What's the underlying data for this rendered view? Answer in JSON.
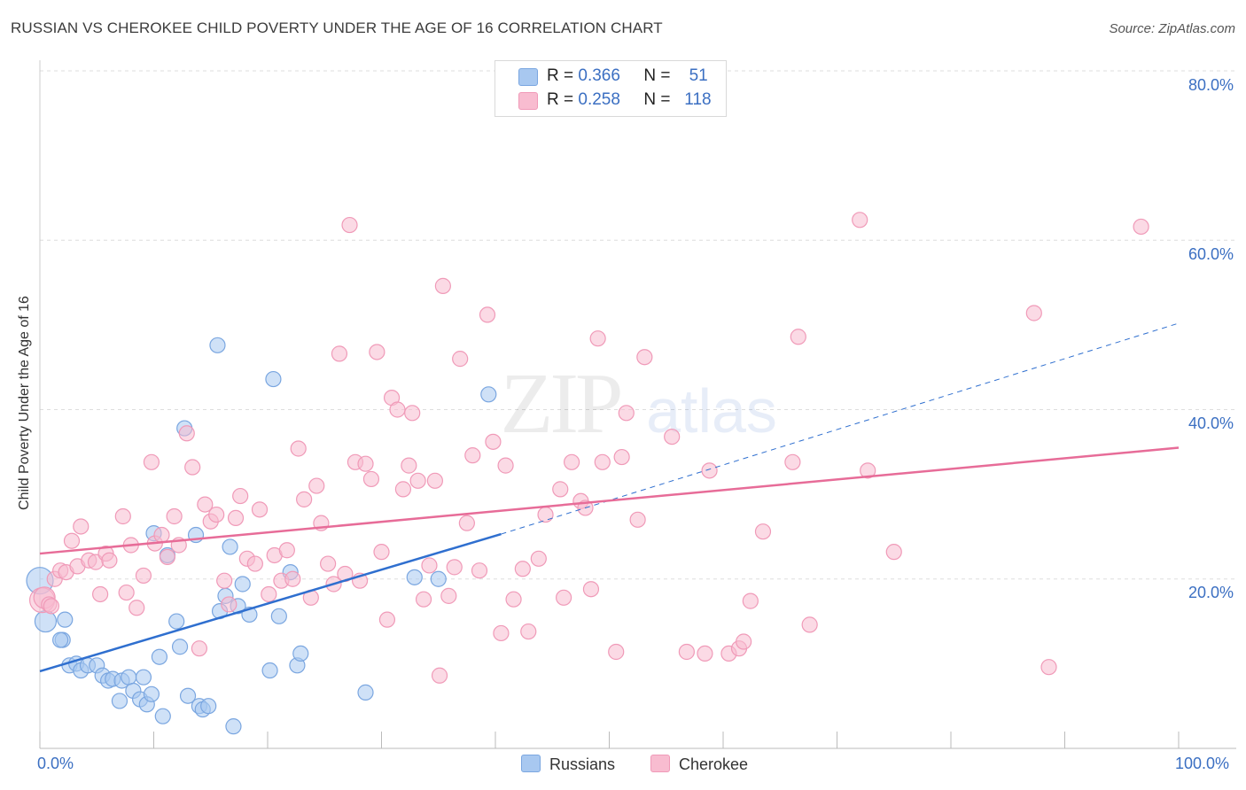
{
  "title": "RUSSIAN VS CHEROKEE CHILD POVERTY UNDER THE AGE OF 16 CORRELATION CHART",
  "source": "Source: ZipAtlas.com",
  "watermark": {
    "zip": "ZIP",
    "atlas": "atlas"
  },
  "legend": {
    "rows": [
      {
        "r_label": "R =",
        "r_value": "0.366",
        "n_label": "N =",
        "n_value": "51",
        "color": "#a8c8f0"
      },
      {
        "r_label": "R =",
        "r_value": "0.258",
        "n_label": "N =",
        "n_value": "118",
        "color": "#f8bcd0"
      }
    ]
  },
  "bottom_legend": [
    {
      "label": "Russians",
      "color": "#a8c8f0"
    },
    {
      "label": "Cherokee",
      "color": "#f8bcd0"
    }
  ],
  "chart_data": {
    "type": "scatter",
    "ylabel": "Child Poverty Under the Age of 16",
    "xlim": [
      0,
      100
    ],
    "ylim": [
      0,
      80
    ],
    "x_tick_labels": [
      "0.0%",
      "100.0%"
    ],
    "y_ticks": [
      20,
      40,
      60,
      80
    ],
    "y_tick_labels": [
      "20.0%",
      "40.0%",
      "60.0%",
      "80.0%"
    ],
    "grid": true,
    "legend_position": "top-center",
    "series": [
      {
        "name": "Russians",
        "color": "#a8c8f0",
        "stroke": "#7aa6e0",
        "trend_color": "#2f6fcf",
        "trend": {
          "x0": 0,
          "y0": 9.1,
          "x1": 40.5,
          "y1": 25.3,
          "dash_to_x": 100,
          "dash_to_y": 50.2
        },
        "points": [
          [
            0,
            19.8
          ],
          [
            0.5,
            15.0
          ],
          [
            2,
            12.8
          ],
          [
            2.2,
            15.2
          ],
          [
            1.8,
            12.8
          ],
          [
            2.6,
            9.8
          ],
          [
            3.2,
            10.0
          ],
          [
            3.6,
            9.2
          ],
          [
            4.2,
            9.8
          ],
          [
            5,
            9.8
          ],
          [
            5.5,
            8.6
          ],
          [
            6,
            8.0
          ],
          [
            6.4,
            8.2
          ],
          [
            7,
            5.6
          ],
          [
            7.2,
            8.0
          ],
          [
            7.8,
            8.4
          ],
          [
            8.2,
            6.8
          ],
          [
            8.8,
            5.8
          ],
          [
            9.1,
            8.4
          ],
          [
            9.4,
            5.2
          ],
          [
            9.8,
            6.4
          ],
          [
            10.5,
            10.8
          ],
          [
            10.8,
            3.8
          ],
          [
            11.2,
            22.8
          ],
          [
            12,
            15.0
          ],
          [
            12.3,
            12.0
          ],
          [
            12.7,
            37.8
          ],
          [
            13,
            6.2
          ],
          [
            13.7,
            25.2
          ],
          [
            14,
            5.0
          ],
          [
            14.3,
            4.6
          ],
          [
            14.8,
            5.0
          ],
          [
            15.6,
            47.6
          ],
          [
            15.8,
            16.2
          ],
          [
            16.3,
            18.0
          ],
          [
            16.7,
            23.8
          ],
          [
            17,
            2.6
          ],
          [
            17.4,
            16.8
          ],
          [
            17.8,
            19.4
          ],
          [
            18.4,
            15.8
          ],
          [
            20.2,
            9.2
          ],
          [
            20.5,
            43.6
          ],
          [
            21,
            15.6
          ],
          [
            22,
            20.8
          ],
          [
            22.6,
            9.8
          ],
          [
            22.9,
            11.2
          ],
          [
            28.6,
            6.6
          ],
          [
            32.9,
            20.2
          ],
          [
            35,
            20.0
          ],
          [
            39.4,
            41.8
          ],
          [
            10,
            25.4
          ]
        ]
      },
      {
        "name": "Cherokee",
        "color": "#f8bcd0",
        "stroke": "#f09ab8",
        "trend_color": "#e76c98",
        "trend": {
          "x0": 0,
          "y0": 23.0,
          "x1": 100,
          "y1": 35.5
        },
        "points": [
          [
            0.2,
            17.5
          ],
          [
            0.4,
            17.8
          ],
          [
            1.3,
            20.0
          ],
          [
            1.8,
            21.0
          ],
          [
            2.3,
            20.8
          ],
          [
            2.8,
            24.5
          ],
          [
            3.3,
            21.5
          ],
          [
            3.6,
            26.2
          ],
          [
            4.3,
            22.2
          ],
          [
            4.9,
            22.0
          ],
          [
            5.3,
            18.2
          ],
          [
            5.8,
            23.0
          ],
          [
            6.1,
            22.2
          ],
          [
            7.3,
            27.4
          ],
          [
            7.6,
            18.4
          ],
          [
            8,
            24.0
          ],
          [
            8.5,
            16.6
          ],
          [
            9.1,
            20.4
          ],
          [
            9.8,
            33.8
          ],
          [
            10.1,
            24.2
          ],
          [
            10.7,
            25.2
          ],
          [
            11.2,
            22.6
          ],
          [
            11.8,
            27.4
          ],
          [
            12.2,
            24.0
          ],
          [
            12.9,
            37.2
          ],
          [
            13.4,
            33.2
          ],
          [
            14,
            11.8
          ],
          [
            14.5,
            28.8
          ],
          [
            15,
            26.8
          ],
          [
            15.5,
            27.6
          ],
          [
            16.2,
            19.8
          ],
          [
            16.6,
            17.0
          ],
          [
            17.2,
            27.2
          ],
          [
            17.6,
            29.8
          ],
          [
            18.2,
            22.4
          ],
          [
            18.9,
            21.8
          ],
          [
            19.3,
            28.2
          ],
          [
            20.1,
            18.2
          ],
          [
            20.6,
            22.8
          ],
          [
            21.2,
            19.8
          ],
          [
            21.7,
            23.4
          ],
          [
            22.2,
            20.0
          ],
          [
            22.7,
            35.4
          ],
          [
            23.2,
            29.4
          ],
          [
            23.8,
            17.8
          ],
          [
            24.3,
            31.0
          ],
          [
            24.7,
            26.6
          ],
          [
            25.3,
            21.8
          ],
          [
            25.8,
            19.4
          ],
          [
            26.3,
            46.6
          ],
          [
            26.8,
            20.6
          ],
          [
            27.2,
            61.8
          ],
          [
            27.7,
            33.8
          ],
          [
            28.1,
            19.8
          ],
          [
            28.6,
            33.6
          ],
          [
            29.1,
            31.8
          ],
          [
            29.6,
            46.8
          ],
          [
            30,
            23.2
          ],
          [
            30.5,
            15.2
          ],
          [
            30.9,
            41.4
          ],
          [
            31.4,
            40.0
          ],
          [
            31.9,
            30.6
          ],
          [
            32.4,
            33.4
          ],
          [
            32.7,
            39.6
          ],
          [
            33.2,
            31.6
          ],
          [
            33.7,
            17.6
          ],
          [
            34.2,
            21.6
          ],
          [
            34.7,
            31.6
          ],
          [
            35.1,
            8.6
          ],
          [
            35.4,
            54.6
          ],
          [
            35.9,
            18.0
          ],
          [
            36.4,
            21.4
          ],
          [
            36.9,
            46.0
          ],
          [
            37.5,
            26.6
          ],
          [
            38,
            34.6
          ],
          [
            38.6,
            21.0
          ],
          [
            39.3,
            51.2
          ],
          [
            39.8,
            36.2
          ],
          [
            40.5,
            13.6
          ],
          [
            40.9,
            33.4
          ],
          [
            41.6,
            17.6
          ],
          [
            42.4,
            21.2
          ],
          [
            42.9,
            13.8
          ],
          [
            43.8,
            22.4
          ],
          [
            44.4,
            27.6
          ],
          [
            45.7,
            30.6
          ],
          [
            46,
            17.8
          ],
          [
            46.7,
            33.8
          ],
          [
            47.5,
            29.2
          ],
          [
            47.9,
            28.4
          ],
          [
            48.4,
            18.8
          ],
          [
            49,
            48.4
          ],
          [
            49.4,
            33.8
          ],
          [
            50.6,
            11.4
          ],
          [
            51.1,
            34.4
          ],
          [
            52.5,
            27.0
          ],
          [
            53.1,
            46.2
          ],
          [
            55.5,
            36.8
          ],
          [
            56.8,
            11.4
          ],
          [
            58.4,
            11.2
          ],
          [
            58.8,
            32.8
          ],
          [
            60.5,
            11.2
          ],
          [
            61.4,
            11.8
          ],
          [
            61.8,
            12.6
          ],
          [
            62.4,
            17.4
          ],
          [
            63.5,
            25.6
          ],
          [
            66.1,
            33.8
          ],
          [
            66.6,
            48.6
          ],
          [
            67.6,
            14.6
          ],
          [
            72,
            62.4
          ],
          [
            72.7,
            32.8
          ],
          [
            75,
            23.2
          ],
          [
            87.3,
            51.4
          ],
          [
            88.6,
            9.6
          ],
          [
            96.7,
            61.6
          ],
          [
            0.8,
            17.0
          ],
          [
            1,
            16.8
          ],
          [
            51.5,
            39.6
          ]
        ]
      }
    ]
  }
}
